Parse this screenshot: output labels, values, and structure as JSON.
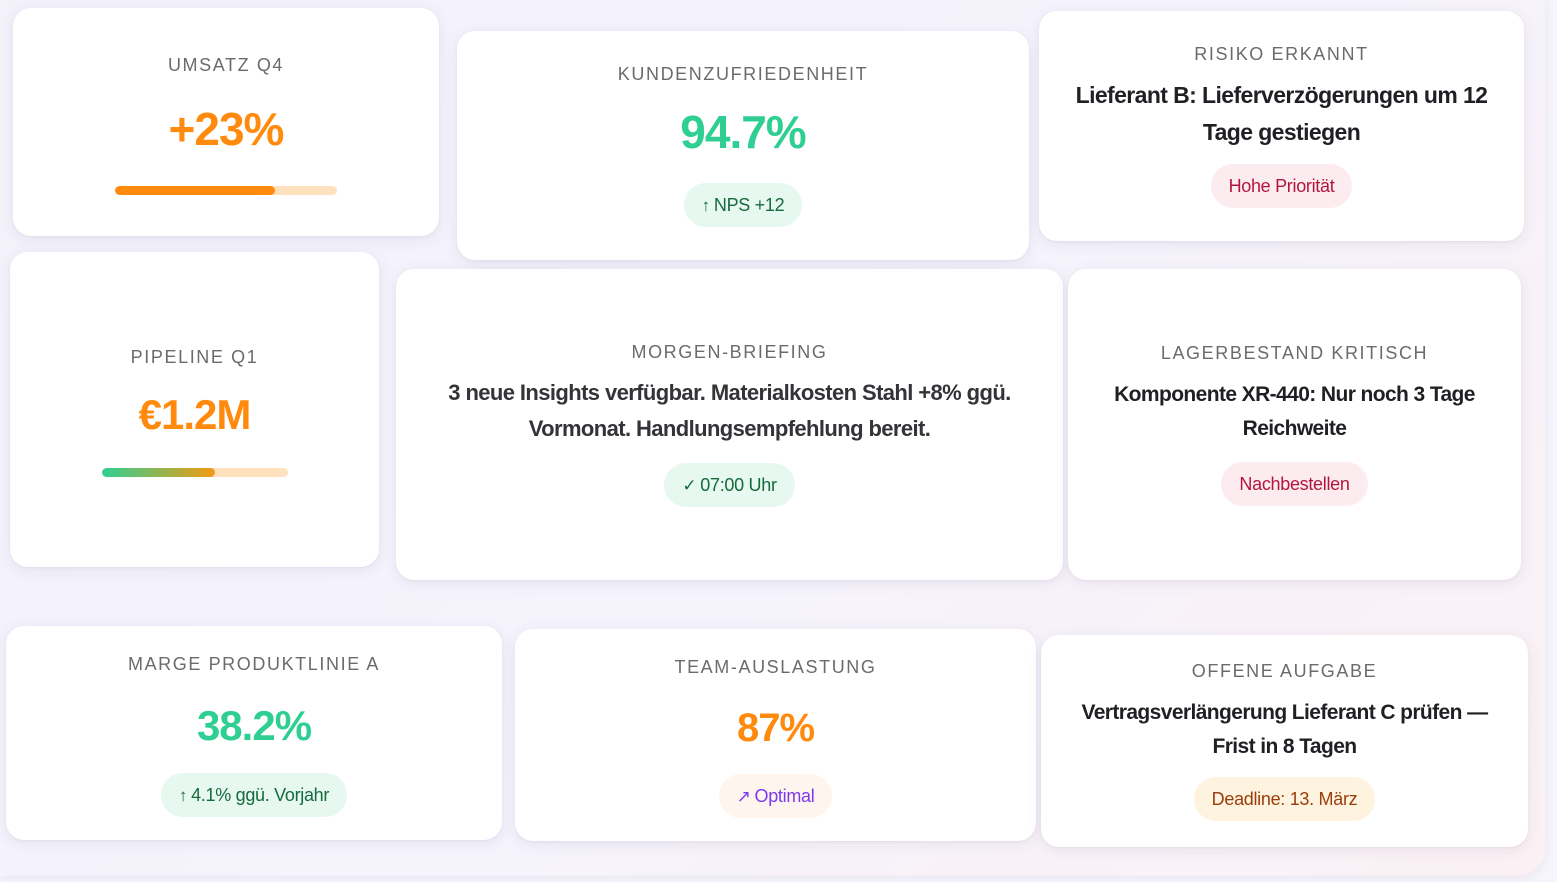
{
  "cards": {
    "umsatz": {
      "label": "UMSATZ Q4",
      "value": "+23%",
      "progress": 0.72
    },
    "kunden": {
      "label": "KUNDENZUFRIEDENHEIT",
      "value": "94.7%",
      "badge": "NPS +12",
      "badge_icon": "↑"
    },
    "risiko": {
      "label": "RISIKO ERKANNT",
      "text": "Lieferant B: Lieferverzögerungen um 12 Tage gestiegen",
      "badge": "Hohe Priorität"
    },
    "pipeline": {
      "label": "PIPELINE Q1",
      "value": "€1.2M",
      "progress": 0.61
    },
    "briefing": {
      "label": "MORGEN-BRIEFING",
      "text": "3 neue Insights verfügbar. Materialkosten Stahl +8% ggü. Vormonat. Handlungsempfehlung bereit.",
      "badge": "07:00 Uhr",
      "badge_icon": "✓"
    },
    "lager": {
      "label": "LAGERBESTAND KRITISCH",
      "text": "Komponente XR-440: Nur noch 3 Tage Reichweite",
      "badge": "Nachbestellen"
    },
    "marge": {
      "label": "MARGE PRODUKTLINIE A",
      "value": "38.2%",
      "badge": "4.1% ggü. Vorjahr",
      "badge_icon": "↑"
    },
    "team": {
      "label": "TEAM-AUSLASTUNG",
      "value": "87%",
      "badge": "Optimal",
      "badge_icon": "↗"
    },
    "aufgabe": {
      "label": "OFFENE AUFGABE",
      "text": "Vertragsverlängerung Lieferant C prüfen — Frist in 8 Tagen",
      "badge": "Deadline: 13. März"
    }
  },
  "colors": {
    "orange": "#ff8a0d",
    "green": "#2fcf93",
    "bar_track": "#ffe2bd"
  }
}
